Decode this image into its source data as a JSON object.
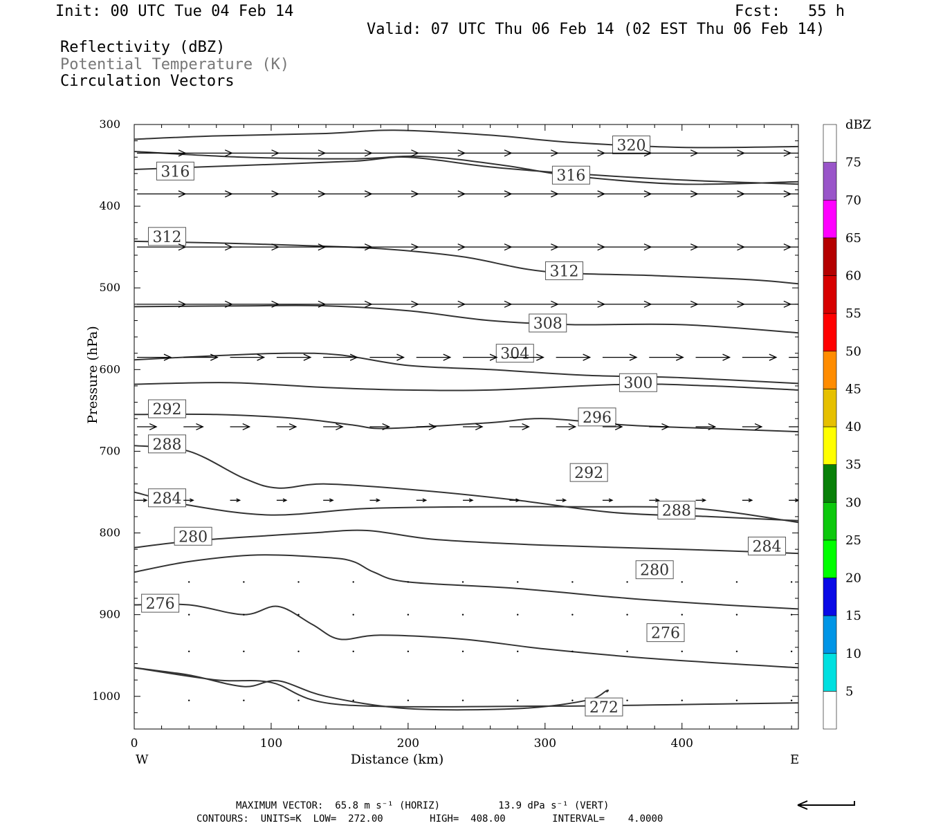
{
  "header": {
    "init": "Init: 00 UTC Tue 04 Feb 14",
    "fcst": "Fcst:   55 h",
    "valid": "Valid: 07 UTC Thu 06 Feb 14 (02 EST Thu 06 Feb 14)",
    "field1": "Reflectivity (dBZ)",
    "field2": "Potential Temperature (K)",
    "field3": "Circulation Vectors"
  },
  "footer": {
    "line1": "MAXIMUM VECTOR:  65.8 m s⁻¹ (HORIZ)          13.9 dPa s⁻¹ (VERT)",
    "line2": "CONTOURS:  UNITS=K  LOW=  272.00        HIGH=  408.00        INTERVAL=    4.0000"
  },
  "colors": {
    "contour": "#333333",
    "scale": [
      "#ffffff",
      "#00e0e0",
      "#0095e6",
      "#0a0ae6",
      "#00ff00",
      "#0cc80c",
      "#088008",
      "#ffff00",
      "#e6c000",
      "#ff8c00",
      "#ff0000",
      "#d70000",
      "#b40000",
      "#ff00ff",
      "#9955c9"
    ]
  },
  "chart_data": {
    "type": "cross-section",
    "xlabel": "Distance (km)",
    "ylabel": "Pressure (hPa)",
    "xlim": [
      0,
      485
    ],
    "ylim": [
      1040,
      300
    ],
    "y_log_scale": false,
    "xticks": [
      0,
      100,
      200,
      300,
      400
    ],
    "yticks": [
      300,
      400,
      500,
      600,
      700,
      800,
      900,
      1000
    ],
    "x_end_labels": {
      "left": "W",
      "right": "E"
    },
    "colorbar": {
      "title": "dBZ",
      "levels": [
        5,
        10,
        15,
        20,
        25,
        30,
        35,
        40,
        45,
        50,
        55,
        60,
        65,
        70,
        75
      ]
    },
    "contours": [
      {
        "level": 320,
        "points": [
          [
            0,
            318
          ],
          [
            60,
            314
          ],
          [
            140,
            311
          ],
          [
            190,
            307
          ],
          [
            260,
            313
          ],
          [
            320,
            322
          ],
          [
            400,
            328
          ],
          [
            485,
            327
          ]
        ],
        "labels": [
          [
            363,
            325
          ]
        ]
      },
      {
        "level": 316,
        "points": [
          [
            0,
            333
          ],
          [
            80,
            340
          ],
          [
            160,
            342
          ],
          [
            210,
            339
          ],
          [
            270,
            350
          ],
          [
            320,
            363
          ],
          [
            400,
            373
          ],
          [
            485,
            370
          ]
        ],
        "labels": [
          [
            30,
            357
          ],
          [
            319,
            362
          ]
        ]
      },
      {
        "level": 316,
        "points": [
          [
            0,
            355
          ],
          [
            80,
            350
          ],
          [
            160,
            345
          ],
          [
            200,
            340
          ],
          [
            260,
            352
          ],
          [
            320,
            360
          ],
          [
            400,
            368
          ],
          [
            485,
            373
          ]
        ],
        "labels": []
      },
      {
        "level": 312,
        "points": [
          [
            0,
            443
          ],
          [
            60,
            445
          ],
          [
            120,
            448
          ],
          [
            180,
            452
          ],
          [
            240,
            462
          ],
          [
            300,
            480
          ],
          [
            380,
            485
          ],
          [
            450,
            490
          ],
          [
            485,
            495
          ]
        ],
        "labels": [
          [
            24,
            437
          ],
          [
            314,
            479
          ]
        ]
      },
      {
        "level": 308,
        "points": [
          [
            0,
            523
          ],
          [
            80,
            522
          ],
          [
            140,
            522
          ],
          [
            200,
            528
          ],
          [
            260,
            540
          ],
          [
            320,
            545
          ],
          [
            400,
            545
          ],
          [
            485,
            555
          ]
        ],
        "labels": [
          [
            302,
            543
          ]
        ]
      },
      {
        "level": 304,
        "points": [
          [
            0,
            588
          ],
          [
            60,
            583
          ],
          [
            110,
            580
          ],
          [
            150,
            582
          ],
          [
            200,
            595
          ],
          [
            260,
            600
          ],
          [
            330,
            607
          ],
          [
            400,
            610
          ],
          [
            485,
            617
          ]
        ],
        "labels": [
          [
            278,
            580
          ]
        ]
      },
      {
        "level": 300,
        "points": [
          [
            0,
            618
          ],
          [
            70,
            616
          ],
          [
            140,
            622
          ],
          [
            200,
            625
          ],
          [
            260,
            625
          ],
          [
            360,
            618
          ],
          [
            420,
            620
          ],
          [
            485,
            625
          ]
        ],
        "labels": [
          [
            368,
            616
          ]
        ]
      },
      {
        "level": 296,
        "points": [
          [
            0,
            655
          ],
          [
            60,
            655
          ],
          [
            120,
            660
          ],
          [
            160,
            668
          ],
          [
            185,
            672
          ],
          [
            260,
            665
          ],
          [
            300,
            660
          ],
          [
            360,
            668
          ],
          [
            420,
            672
          ],
          [
            485,
            676
          ]
        ],
        "labels": [
          [
            338,
            658
          ]
        ]
      },
      {
        "level": 292,
        "points": [
          [
            0,
            693
          ],
          [
            40,
            700
          ],
          [
            80,
            733
          ],
          [
            105,
            745
          ],
          [
            140,
            740
          ],
          [
            210,
            748
          ],
          [
            280,
            760
          ],
          [
            350,
            775
          ],
          [
            420,
            780
          ],
          [
            485,
            785
          ]
        ],
        "labels": [
          [
            24,
            648
          ],
          [
            332,
            726
          ]
        ]
      },
      {
        "level": 288,
        "points": [
          [
            0,
            750
          ],
          [
            40,
            766
          ],
          [
            100,
            778
          ],
          [
            170,
            770
          ],
          [
            250,
            768
          ],
          [
            330,
            768
          ],
          [
            410,
            770
          ],
          [
            485,
            787
          ]
        ],
        "labels": [
          [
            24,
            691
          ],
          [
            396,
            772
          ]
        ]
      },
      {
        "level": 284,
        "points": [
          [
            0,
            818
          ],
          [
            40,
            810
          ],
          [
            100,
            803
          ],
          [
            130,
            800
          ],
          [
            170,
            797
          ],
          [
            220,
            808
          ],
          [
            300,
            815
          ],
          [
            400,
            820
          ],
          [
            485,
            825
          ]
        ],
        "labels": [
          [
            24,
            757
          ],
          [
            462,
            816
          ]
        ]
      },
      {
        "level": 280,
        "points": [
          [
            0,
            848
          ],
          [
            40,
            835
          ],
          [
            90,
            827
          ],
          [
            140,
            830
          ],
          [
            160,
            835
          ],
          [
            175,
            848
          ],
          [
            200,
            860
          ],
          [
            280,
            868
          ],
          [
            360,
            880
          ],
          [
            430,
            888
          ],
          [
            485,
            893
          ]
        ],
        "labels": [
          [
            43,
            804
          ],
          [
            380,
            845
          ]
        ]
      },
      {
        "level": 276,
        "points": [
          [
            0,
            888
          ],
          [
            40,
            888
          ],
          [
            80,
            900
          ],
          [
            105,
            890
          ],
          [
            130,
            912
          ],
          [
            150,
            930
          ],
          [
            180,
            925
          ],
          [
            240,
            930
          ],
          [
            300,
            942
          ],
          [
            380,
            954
          ],
          [
            485,
            965
          ]
        ],
        "labels": [
          [
            19,
            886
          ],
          [
            388,
            922
          ]
        ]
      },
      {
        "level": 272,
        "points": [
          [
            0,
            965
          ],
          [
            40,
            974
          ],
          [
            80,
            988
          ],
          [
            105,
            981
          ],
          [
            140,
            1000
          ],
          [
            200,
            1015
          ],
          [
            280,
            1015
          ],
          [
            330,
            1005
          ],
          [
            345,
            993
          ],
          [
            345,
            995
          ]
        ],
        "labels": [
          [
            343,
            1013
          ]
        ]
      },
      {
        "level": 272,
        "points": [
          [
            0,
            965
          ],
          [
            60,
            980
          ],
          [
            100,
            983
          ],
          [
            150,
            1010
          ],
          [
            300,
            1012
          ],
          [
            400,
            1010
          ],
          [
            485,
            1008
          ]
        ],
        "labels": []
      }
    ],
    "vectors": {
      "description": "circulation vectors (horizontal wind dominant, westerly)",
      "rows": [
        {
          "p": 335,
          "u": [
            1,
            1,
            1,
            1,
            1,
            1,
            1,
            1,
            1,
            1,
            1,
            1,
            1,
            1,
            1
          ]
        },
        {
          "p": 385,
          "u": [
            1,
            1,
            1,
            1,
            1,
            1,
            1,
            1,
            1,
            1,
            1,
            1,
            1,
            1,
            1
          ]
        },
        {
          "p": 450,
          "u": [
            1,
            1,
            1,
            1,
            1,
            1,
            1,
            1,
            1,
            1,
            1,
            1,
            1,
            1,
            1
          ]
        },
        {
          "p": 520,
          "u": [
            1,
            1,
            1,
            1,
            1,
            1,
            1,
            1,
            1,
            1,
            1,
            1,
            1,
            1,
            1
          ]
        },
        {
          "p": 585,
          "u": [
            0.7,
            0.7,
            0.7,
            0.7,
            0.7,
            0.7,
            0.7,
            0.7,
            0.7,
            0.7,
            0.7,
            0.7,
            0.7,
            0.7,
            0.7
          ]
        },
        {
          "p": 670,
          "u": [
            0.4,
            0.4,
            0.4,
            0.4,
            0.4,
            0.4,
            0.4,
            0.4,
            0.4,
            0.4,
            0.4,
            0.4,
            0.4,
            0.4,
            0.4
          ]
        },
        {
          "p": 760,
          "u": [
            0.2,
            0.2,
            0.2,
            0.2,
            0.2,
            0.2,
            0.2,
            0.2,
            0.2,
            0.2,
            0.2,
            0.2,
            0.2,
            0.2,
            0.2
          ]
        }
      ]
    }
  }
}
